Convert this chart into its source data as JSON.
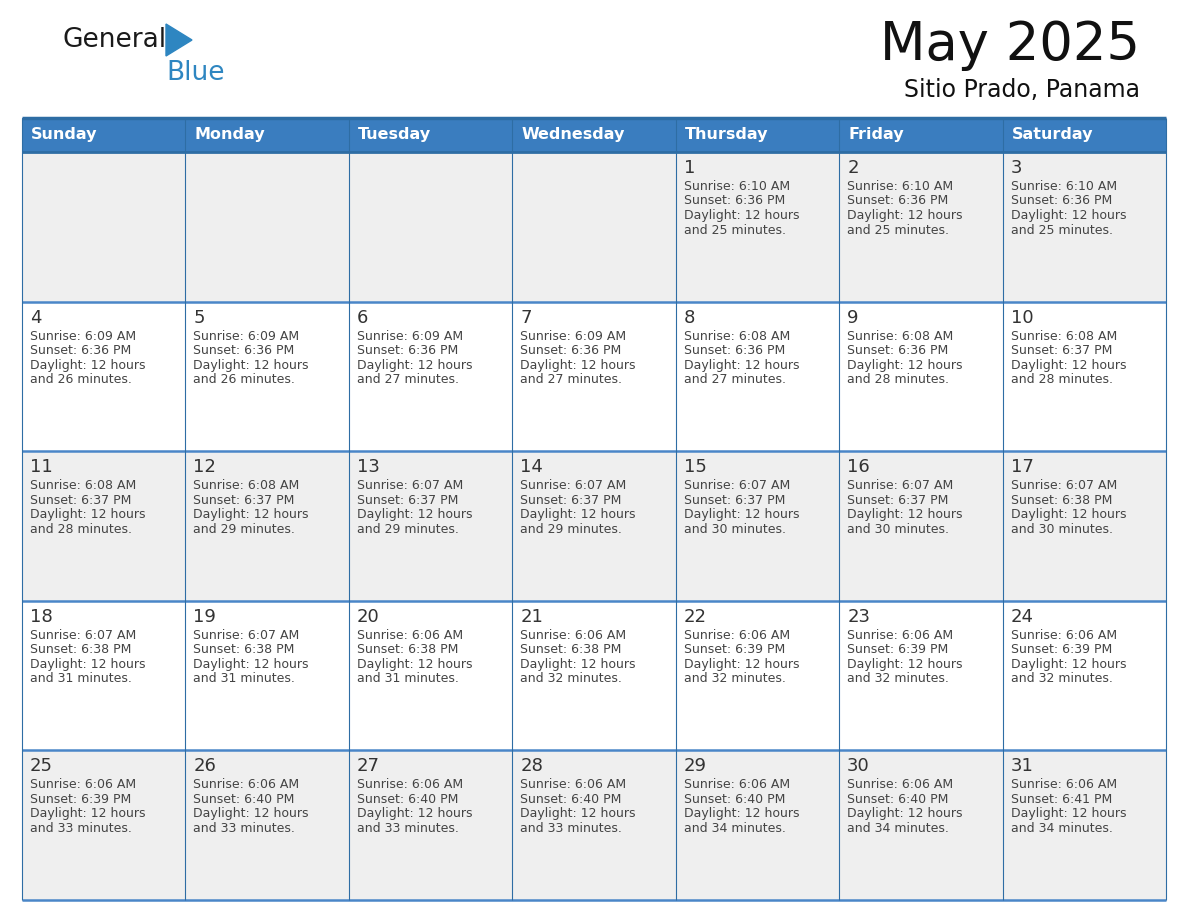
{
  "title": "May 2025",
  "subtitle": "Sitio Prado, Panama",
  "days_of_week": [
    "Sunday",
    "Monday",
    "Tuesday",
    "Wednesday",
    "Thursday",
    "Friday",
    "Saturday"
  ],
  "header_bg": "#3a7dbf",
  "header_text": "#ffffff",
  "row_bg_light": "#efefef",
  "row_bg_white": "#ffffff",
  "header_border_color": "#2e6da4",
  "row_line_color": "#4a86c8",
  "date_color": "#333333",
  "text_color": "#444444",
  "title_color": "#111111",
  "subtitle_color": "#111111",
  "logo_general_color": "#1a1a1a",
  "logo_blue_color": "#2e86c1",
  "calendar_data": [
    [
      {
        "day": "",
        "sunrise": "",
        "sunset": "",
        "daylight_line1": "",
        "daylight_line2": ""
      },
      {
        "day": "",
        "sunrise": "",
        "sunset": "",
        "daylight_line1": "",
        "daylight_line2": ""
      },
      {
        "day": "",
        "sunrise": "",
        "sunset": "",
        "daylight_line1": "",
        "daylight_line2": ""
      },
      {
        "day": "",
        "sunrise": "",
        "sunset": "",
        "daylight_line1": "",
        "daylight_line2": ""
      },
      {
        "day": "1",
        "sunrise": "6:10 AM",
        "sunset": "6:36 PM",
        "daylight_line1": "Daylight: 12 hours",
        "daylight_line2": "and 25 minutes."
      },
      {
        "day": "2",
        "sunrise": "6:10 AM",
        "sunset": "6:36 PM",
        "daylight_line1": "Daylight: 12 hours",
        "daylight_line2": "and 25 minutes."
      },
      {
        "day": "3",
        "sunrise": "6:10 AM",
        "sunset": "6:36 PM",
        "daylight_line1": "Daylight: 12 hours",
        "daylight_line2": "and 25 minutes."
      }
    ],
    [
      {
        "day": "4",
        "sunrise": "6:09 AM",
        "sunset": "6:36 PM",
        "daylight_line1": "Daylight: 12 hours",
        "daylight_line2": "and 26 minutes."
      },
      {
        "day": "5",
        "sunrise": "6:09 AM",
        "sunset": "6:36 PM",
        "daylight_line1": "Daylight: 12 hours",
        "daylight_line2": "and 26 minutes."
      },
      {
        "day": "6",
        "sunrise": "6:09 AM",
        "sunset": "6:36 PM",
        "daylight_line1": "Daylight: 12 hours",
        "daylight_line2": "and 27 minutes."
      },
      {
        "day": "7",
        "sunrise": "6:09 AM",
        "sunset": "6:36 PM",
        "daylight_line1": "Daylight: 12 hours",
        "daylight_line2": "and 27 minutes."
      },
      {
        "day": "8",
        "sunrise": "6:08 AM",
        "sunset": "6:36 PM",
        "daylight_line1": "Daylight: 12 hours",
        "daylight_line2": "and 27 minutes."
      },
      {
        "day": "9",
        "sunrise": "6:08 AM",
        "sunset": "6:36 PM",
        "daylight_line1": "Daylight: 12 hours",
        "daylight_line2": "and 28 minutes."
      },
      {
        "day": "10",
        "sunrise": "6:08 AM",
        "sunset": "6:37 PM",
        "daylight_line1": "Daylight: 12 hours",
        "daylight_line2": "and 28 minutes."
      }
    ],
    [
      {
        "day": "11",
        "sunrise": "6:08 AM",
        "sunset": "6:37 PM",
        "daylight_line1": "Daylight: 12 hours",
        "daylight_line2": "and 28 minutes."
      },
      {
        "day": "12",
        "sunrise": "6:08 AM",
        "sunset": "6:37 PM",
        "daylight_line1": "Daylight: 12 hours",
        "daylight_line2": "and 29 minutes."
      },
      {
        "day": "13",
        "sunrise": "6:07 AM",
        "sunset": "6:37 PM",
        "daylight_line1": "Daylight: 12 hours",
        "daylight_line2": "and 29 minutes."
      },
      {
        "day": "14",
        "sunrise": "6:07 AM",
        "sunset": "6:37 PM",
        "daylight_line1": "Daylight: 12 hours",
        "daylight_line2": "and 29 minutes."
      },
      {
        "day": "15",
        "sunrise": "6:07 AM",
        "sunset": "6:37 PM",
        "daylight_line1": "Daylight: 12 hours",
        "daylight_line2": "and 30 minutes."
      },
      {
        "day": "16",
        "sunrise": "6:07 AM",
        "sunset": "6:37 PM",
        "daylight_line1": "Daylight: 12 hours",
        "daylight_line2": "and 30 minutes."
      },
      {
        "day": "17",
        "sunrise": "6:07 AM",
        "sunset": "6:38 PM",
        "daylight_line1": "Daylight: 12 hours",
        "daylight_line2": "and 30 minutes."
      }
    ],
    [
      {
        "day": "18",
        "sunrise": "6:07 AM",
        "sunset": "6:38 PM",
        "daylight_line1": "Daylight: 12 hours",
        "daylight_line2": "and 31 minutes."
      },
      {
        "day": "19",
        "sunrise": "6:07 AM",
        "sunset": "6:38 PM",
        "daylight_line1": "Daylight: 12 hours",
        "daylight_line2": "and 31 minutes."
      },
      {
        "day": "20",
        "sunrise": "6:06 AM",
        "sunset": "6:38 PM",
        "daylight_line1": "Daylight: 12 hours",
        "daylight_line2": "and 31 minutes."
      },
      {
        "day": "21",
        "sunrise": "6:06 AM",
        "sunset": "6:38 PM",
        "daylight_line1": "Daylight: 12 hours",
        "daylight_line2": "and 32 minutes."
      },
      {
        "day": "22",
        "sunrise": "6:06 AM",
        "sunset": "6:39 PM",
        "daylight_line1": "Daylight: 12 hours",
        "daylight_line2": "and 32 minutes."
      },
      {
        "day": "23",
        "sunrise": "6:06 AM",
        "sunset": "6:39 PM",
        "daylight_line1": "Daylight: 12 hours",
        "daylight_line2": "and 32 minutes."
      },
      {
        "day": "24",
        "sunrise": "6:06 AM",
        "sunset": "6:39 PM",
        "daylight_line1": "Daylight: 12 hours",
        "daylight_line2": "and 32 minutes."
      }
    ],
    [
      {
        "day": "25",
        "sunrise": "6:06 AM",
        "sunset": "6:39 PM",
        "daylight_line1": "Daylight: 12 hours",
        "daylight_line2": "and 33 minutes."
      },
      {
        "day": "26",
        "sunrise": "6:06 AM",
        "sunset": "6:40 PM",
        "daylight_line1": "Daylight: 12 hours",
        "daylight_line2": "and 33 minutes."
      },
      {
        "day": "27",
        "sunrise": "6:06 AM",
        "sunset": "6:40 PM",
        "daylight_line1": "Daylight: 12 hours",
        "daylight_line2": "and 33 minutes."
      },
      {
        "day": "28",
        "sunrise": "6:06 AM",
        "sunset": "6:40 PM",
        "daylight_line1": "Daylight: 12 hours",
        "daylight_line2": "and 33 minutes."
      },
      {
        "day": "29",
        "sunrise": "6:06 AM",
        "sunset": "6:40 PM",
        "daylight_line1": "Daylight: 12 hours",
        "daylight_line2": "and 34 minutes."
      },
      {
        "day": "30",
        "sunrise": "6:06 AM",
        "sunset": "6:40 PM",
        "daylight_line1": "Daylight: 12 hours",
        "daylight_line2": "and 34 minutes."
      },
      {
        "day": "31",
        "sunrise": "6:06 AM",
        "sunset": "6:41 PM",
        "daylight_line1": "Daylight: 12 hours",
        "daylight_line2": "and 34 minutes."
      }
    ]
  ]
}
